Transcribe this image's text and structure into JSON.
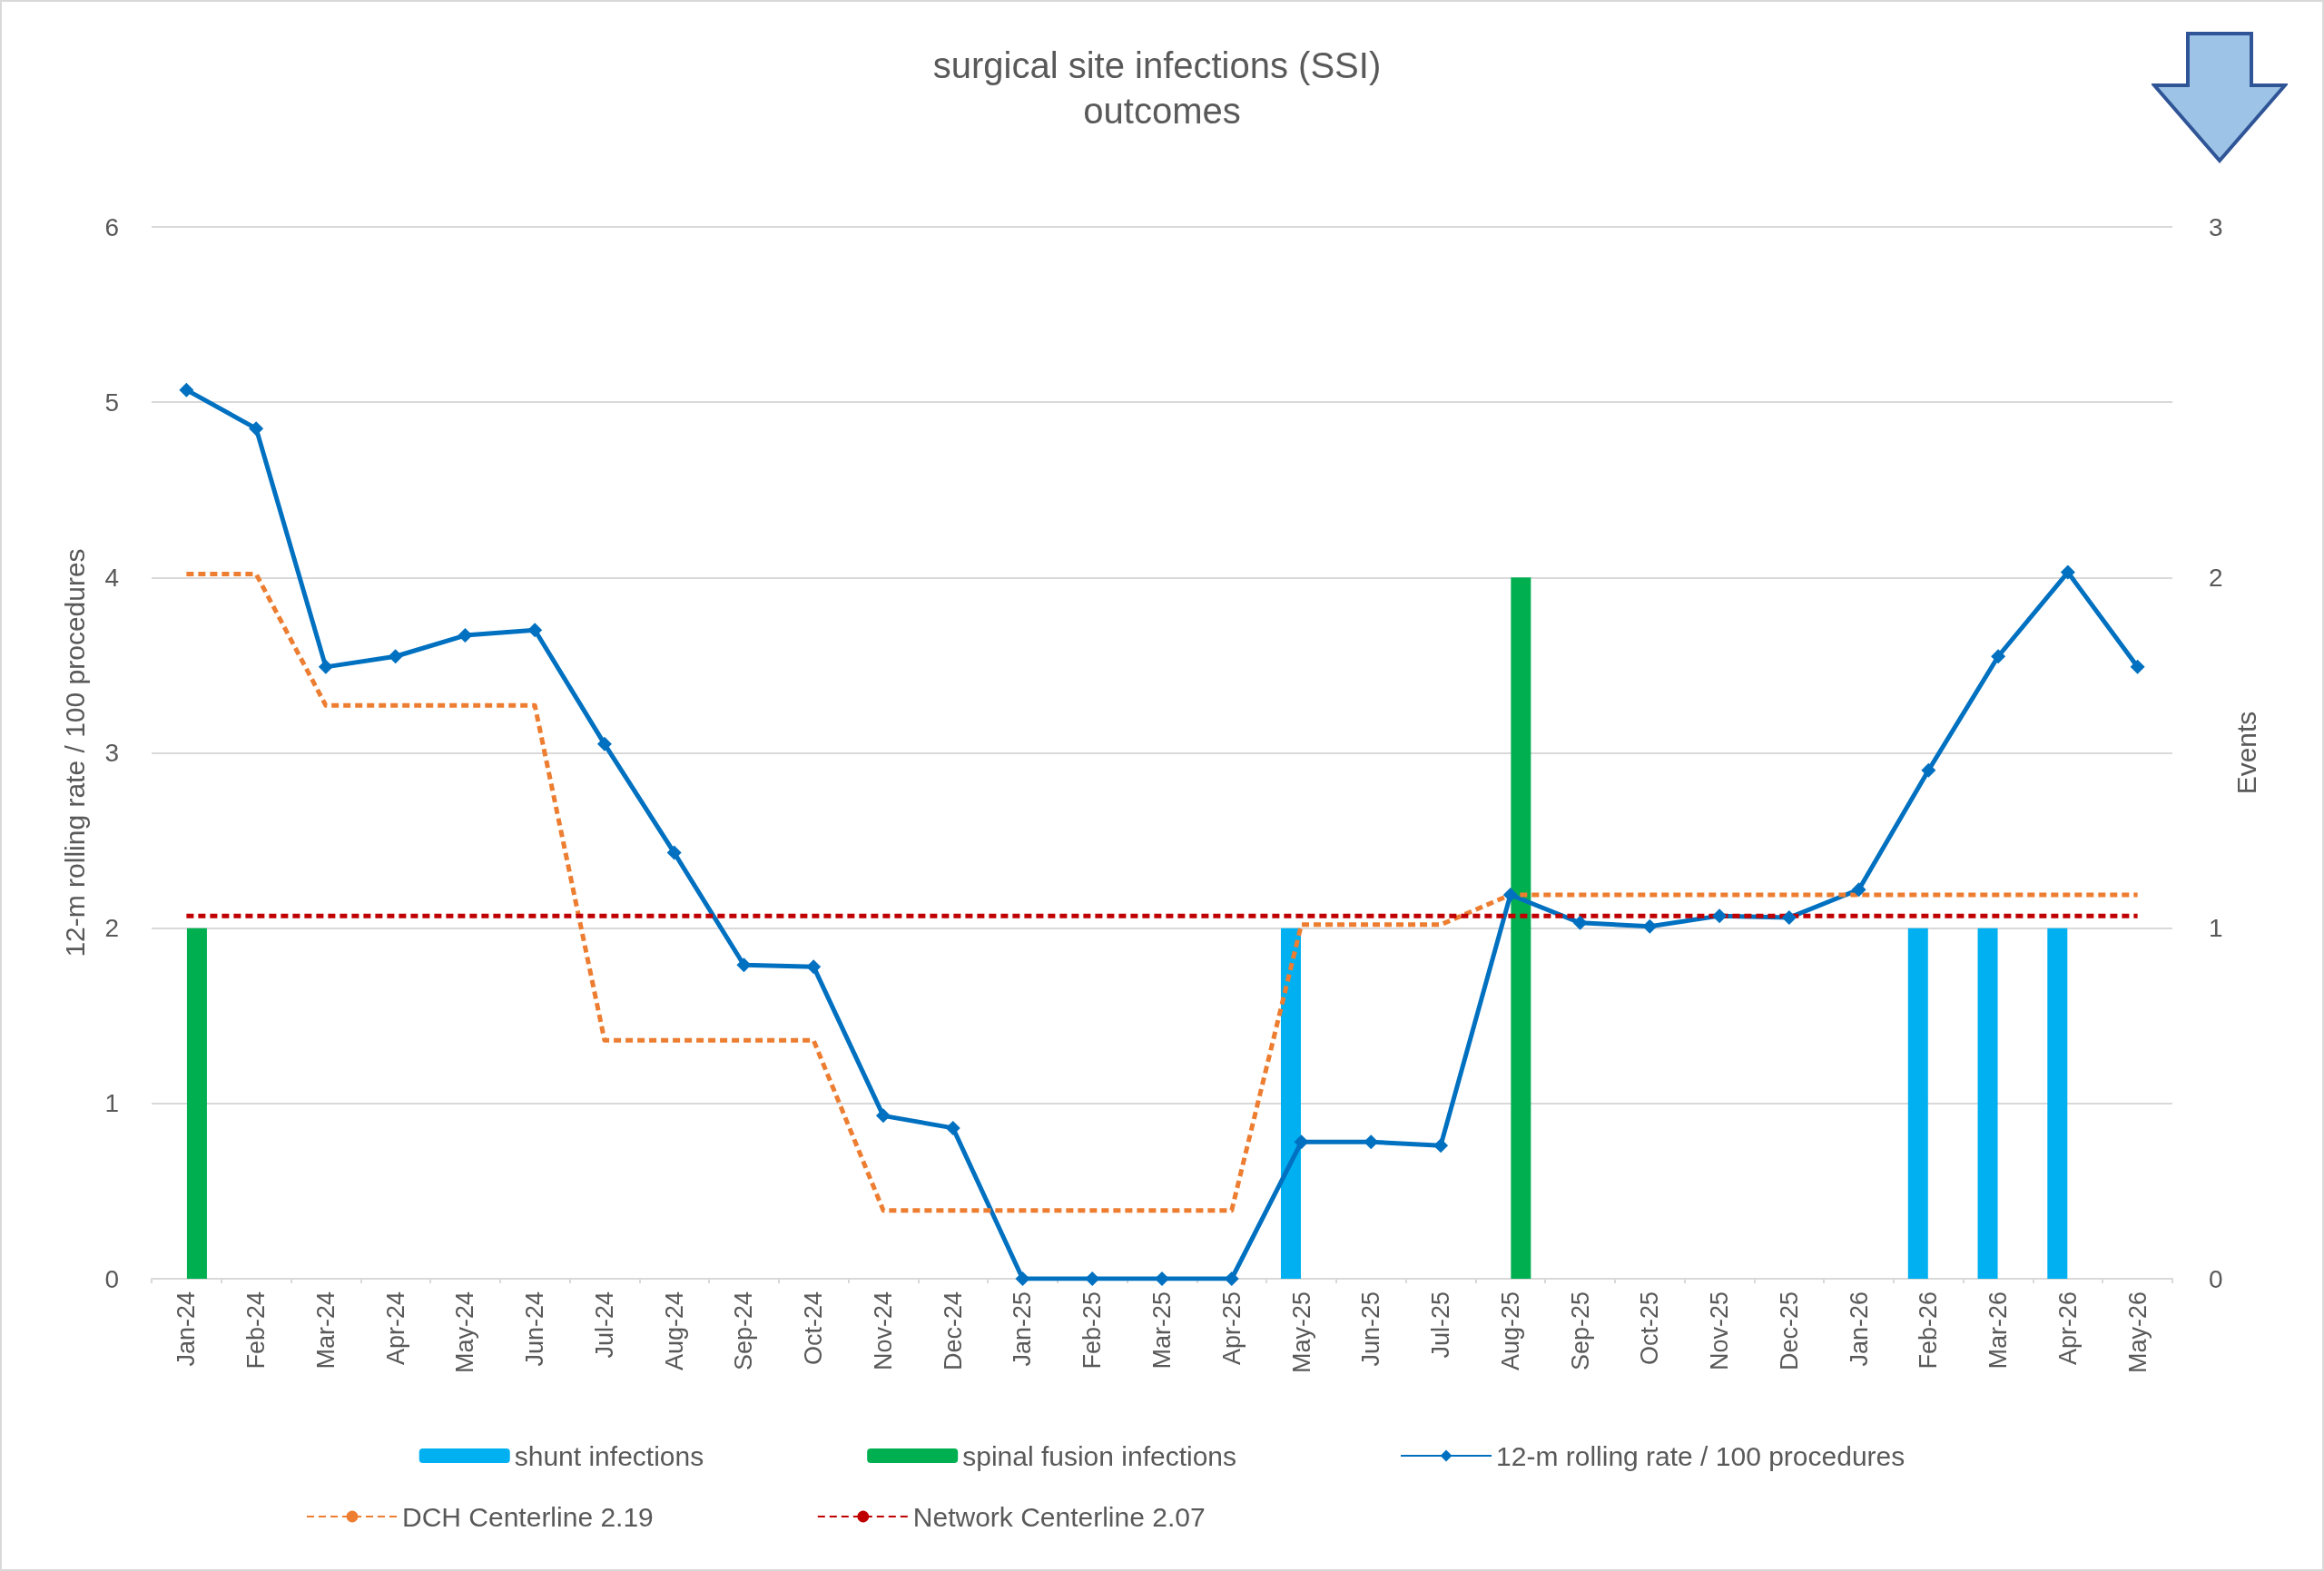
{
  "chart_data": {
    "type": "line",
    "title": "surgical site infections (SSI) outcomes",
    "ylabel": "12-m rolling rate / 100 procedures",
    "y2label": "Events",
    "categories": [
      "Jan-24",
      "Feb-24",
      "Mar-24",
      "Apr-24",
      "May-24",
      "Jun-24",
      "Jul-24",
      "Aug-24",
      "Sep-24",
      "Oct-24",
      "Nov-24",
      "Dec-24",
      "Jan-25",
      "Feb-25",
      "Mar-25",
      "Apr-25",
      "May-25",
      "Jun-25",
      "Jul-25",
      "Aug-25",
      "Sep-25",
      "Oct-25",
      "Nov-25",
      "Dec-25",
      "Jan-26",
      "Feb-26",
      "Mar-26",
      "Apr-26",
      "May-26"
    ],
    "series": [
      {
        "name": "shunt infections",
        "type": "bar",
        "axis": "y2",
        "color": "#00b0f0",
        "values": [
          null,
          null,
          null,
          null,
          null,
          null,
          null,
          null,
          null,
          null,
          null,
          null,
          null,
          null,
          null,
          null,
          1,
          null,
          null,
          null,
          null,
          null,
          null,
          null,
          null,
          1,
          1,
          1,
          null
        ]
      },
      {
        "name": "spinal fusion infections",
        "type": "bar",
        "axis": "y2",
        "color": "#00b050",
        "values": [
          1,
          null,
          null,
          null,
          null,
          null,
          null,
          null,
          null,
          null,
          null,
          null,
          null,
          null,
          null,
          null,
          null,
          null,
          null,
          2,
          null,
          null,
          null,
          null,
          null,
          null,
          null,
          null,
          null
        ]
      },
      {
        "name": "12-m rolling rate / 100 procedures",
        "color": "#0070c0",
        "marker": "diamond",
        "line_style": "solid",
        "values": [
          5.07,
          4.85,
          3.49,
          3.55,
          3.67,
          3.7,
          3.05,
          2.43,
          1.79,
          1.78,
          0.93,
          0.86,
          0,
          0,
          0,
          0,
          0.78,
          0.78,
          0.76,
          2.19,
          2.03,
          2.01,
          2.07,
          2.06,
          2.22,
          2.9,
          3.55,
          4.03,
          3.49
        ]
      },
      {
        "name": "DCH Centerline 2.19",
        "color": "#ed7d31",
        "marker": "none",
        "line_style": "dashed",
        "values": [
          4.02,
          4.02,
          3.27,
          3.27,
          3.27,
          3.27,
          1.36,
          1.36,
          1.36,
          1.36,
          0.39,
          0.39,
          0.39,
          0.39,
          0.39,
          0.39,
          2.02,
          2.02,
          2.02,
          2.19,
          2.19,
          2.19,
          2.19,
          2.19,
          2.19,
          2.19,
          2.19,
          2.19,
          2.19
        ]
      },
      {
        "name": "Network Centerline 2.07",
        "color": "#c00000",
        "marker": "none",
        "line_style": "dashed",
        "values": [
          2.07,
          2.07,
          2.07,
          2.07,
          2.07,
          2.07,
          2.07,
          2.07,
          2.07,
          2.07,
          2.07,
          2.07,
          2.07,
          2.07,
          2.07,
          2.07,
          2.07,
          2.07,
          2.07,
          2.07,
          2.07,
          2.07,
          2.07,
          2.07,
          2.07,
          2.07,
          2.07,
          2.07,
          2.07
        ]
      }
    ],
    "ylim": [
      0,
      6
    ],
    "yticks": [
      0,
      1,
      2,
      3,
      4,
      5,
      6
    ],
    "y2lim": [
      0,
      3
    ],
    "y2ticks": [
      0,
      1,
      2,
      3
    ],
    "grid": "y",
    "legend": "bottom"
  }
}
